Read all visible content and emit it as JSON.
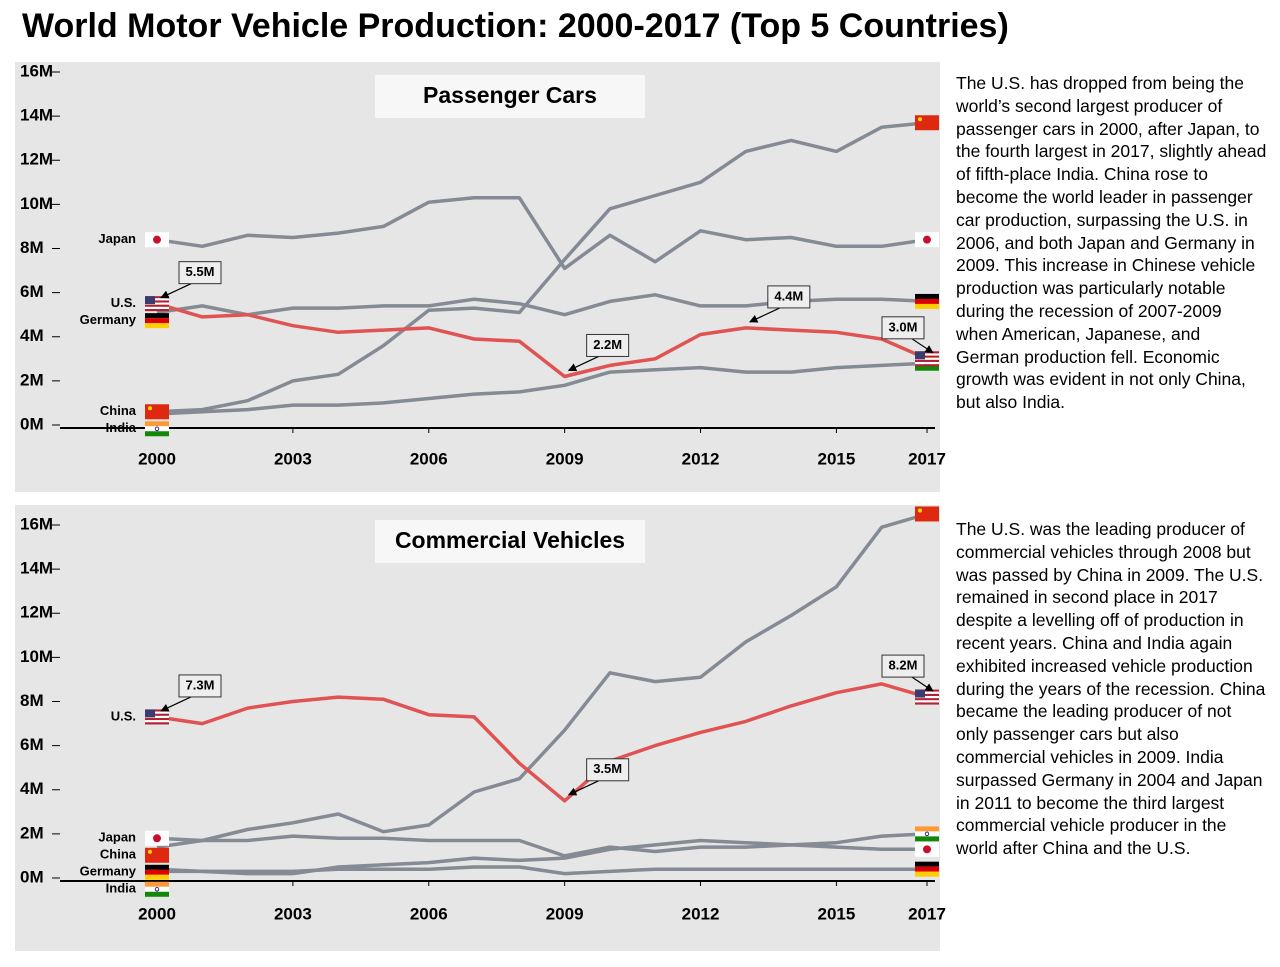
{
  "title": "World Motor Vehicle Production: 2000-2017 (Top 5 Countries)",
  "notes": [
    "The U.S. has dropped from being the world’s second largest producer of passenger cars in 2000, after Japan, to the fourth largest in 2017, slightly ahead of fifth-place India. China rose to become the world leader in passenger car production, surpassing the U.S. in 2006, and both Japan and Germany in 2009. This increase in Chinese vehicle production was particularly notable during the recession of 2007-2009 when American, Japanese, and German production fell. Economic growth was evident in not only China, but also India.",
    "The U.S. was the leading producer of commercial vehicles through 2008 but was passed by China in 2009.  The U.S. remained in second place in 2017 despite a levelling off of production in recent years. China and India again exhibited increased vehicle production during the years of the recession. China became the leading producer of not only passenger cars but also commercial vehicles in 2009. India surpassed Germany in 2004 and Japan in 2011 to become the third largest commercial vehicle producer in the world after China and the U.S."
  ],
  "chart_data": [
    {
      "type": "line",
      "title": "Passenger Cars",
      "x": [
        2000,
        2001,
        2002,
        2003,
        2004,
        2005,
        2006,
        2007,
        2008,
        2009,
        2010,
        2011,
        2012,
        2013,
        2014,
        2015,
        2016,
        2017
      ],
      "xlim": [
        2000,
        2017
      ],
      "xticks": [
        2000,
        2003,
        2006,
        2009,
        2012,
        2015,
        2017
      ],
      "ylim": [
        0,
        16
      ],
      "yticks": [
        {
          "value": 0,
          "label": "0M"
        },
        {
          "value": 2,
          "label": "2M"
        },
        {
          "value": 4,
          "label": "4M"
        },
        {
          "value": 6,
          "label": "6M"
        },
        {
          "value": 8,
          "label": "8M"
        },
        {
          "value": 10,
          "label": "10M"
        },
        {
          "value": 12,
          "label": "12M"
        },
        {
          "value": 14,
          "label": "14M"
        },
        {
          "value": 16,
          "label": "16M"
        }
      ],
      "series": [
        {
          "name": "Japan",
          "color": "#858b94",
          "values": [
            8.4,
            8.1,
            8.6,
            8.5,
            8.7,
            9.0,
            10.1,
            10.3,
            10.3,
            7.1,
            8.6,
            7.4,
            8.8,
            8.4,
            8.5,
            8.1,
            8.1,
            8.4
          ]
        },
        {
          "name": "U.S.",
          "color": "#e05353",
          "values": [
            5.5,
            4.9,
            5.0,
            4.5,
            4.2,
            4.3,
            4.4,
            3.9,
            3.8,
            2.2,
            2.7,
            3.0,
            4.1,
            4.4,
            4.3,
            4.2,
            3.9,
            3.0
          ],
          "value_labels": [
            "5.5M",
            null,
            null,
            null,
            null,
            null,
            null,
            null,
            null,
            "2.2M",
            null,
            null,
            null,
            "4.4M",
            null,
            null,
            null,
            "3.0M"
          ]
        },
        {
          "name": "Germany",
          "color": "#858b94",
          "values": [
            5.1,
            5.4,
            5.0,
            5.3,
            5.3,
            5.4,
            5.4,
            5.7,
            5.5,
            5.0,
            5.6,
            5.9,
            5.4,
            5.4,
            5.6,
            5.7,
            5.7,
            5.6
          ]
        },
        {
          "name": "China",
          "color": "#858b94",
          "values": [
            0.6,
            0.7,
            1.1,
            2.0,
            2.3,
            3.6,
            5.2,
            5.3,
            5.1,
            7.5,
            9.8,
            10.4,
            11.0,
            12.4,
            12.9,
            12.4,
            13.5,
            13.7
          ]
        },
        {
          "name": "India",
          "color": "#858b94",
          "values": [
            0.5,
            0.6,
            0.7,
            0.9,
            0.9,
            1.0,
            1.2,
            1.4,
            1.5,
            1.8,
            2.4,
            2.5,
            2.6,
            2.4,
            2.4,
            2.6,
            2.7,
            2.8
          ]
        }
      ]
    },
    {
      "type": "line",
      "title": "Commercial Vehicles",
      "x": [
        2000,
        2001,
        2002,
        2003,
        2004,
        2005,
        2006,
        2007,
        2008,
        2009,
        2010,
        2011,
        2012,
        2013,
        2014,
        2015,
        2016,
        2017
      ],
      "xlim": [
        2000,
        2017
      ],
      "xticks": [
        2000,
        2003,
        2006,
        2009,
        2012,
        2015,
        2017
      ],
      "ylim": [
        0,
        16
      ],
      "yticks": [
        {
          "value": 0,
          "label": "0M"
        },
        {
          "value": 2,
          "label": "2M"
        },
        {
          "value": 4,
          "label": "4M"
        },
        {
          "value": 6,
          "label": "6M"
        },
        {
          "value": 8,
          "label": "8M"
        },
        {
          "value": 10,
          "label": "10M"
        },
        {
          "value": 12,
          "label": "12M"
        },
        {
          "value": 14,
          "label": "14M"
        },
        {
          "value": 16,
          "label": "16M"
        }
      ],
      "series": [
        {
          "name": "U.S.",
          "color": "#e05353",
          "values": [
            7.3,
            7.0,
            7.7,
            8.0,
            8.2,
            8.1,
            7.4,
            7.3,
            5.2,
            3.5,
            5.3,
            6.0,
            6.6,
            7.1,
            7.8,
            8.4,
            8.8,
            8.2
          ],
          "value_labels": [
            "7.3M",
            null,
            null,
            null,
            null,
            null,
            null,
            null,
            null,
            "3.5M",
            null,
            null,
            null,
            null,
            null,
            null,
            null,
            "8.2M"
          ]
        },
        {
          "name": "Japan",
          "color": "#858b94",
          "values": [
            1.8,
            1.7,
            1.7,
            1.9,
            1.8,
            1.8,
            1.7,
            1.7,
            1.7,
            1.0,
            1.4,
            1.2,
            1.4,
            1.4,
            1.5,
            1.4,
            1.3,
            1.3
          ]
        },
        {
          "name": "China",
          "color": "#858b94",
          "values": [
            1.4,
            1.7,
            2.2,
            2.5,
            2.9,
            2.1,
            2.4,
            3.9,
            4.5,
            6.7,
            9.3,
            8.9,
            9.1,
            10.7,
            11.9,
            13.2,
            15.9,
            16.5
          ]
        },
        {
          "name": "Germany",
          "color": "#858b94",
          "values": [
            0.4,
            0.3,
            0.3,
            0.3,
            0.4,
            0.4,
            0.4,
            0.5,
            0.5,
            0.2,
            0.3,
            0.4,
            0.4,
            0.4,
            0.4,
            0.4,
            0.4,
            0.4
          ]
        },
        {
          "name": "India",
          "color": "#858b94",
          "values": [
            0.3,
            0.3,
            0.2,
            0.2,
            0.5,
            0.6,
            0.7,
            0.9,
            0.8,
            0.9,
            1.3,
            1.5,
            1.7,
            1.6,
            1.5,
            1.6,
            1.9,
            2.0
          ]
        }
      ]
    }
  ]
}
